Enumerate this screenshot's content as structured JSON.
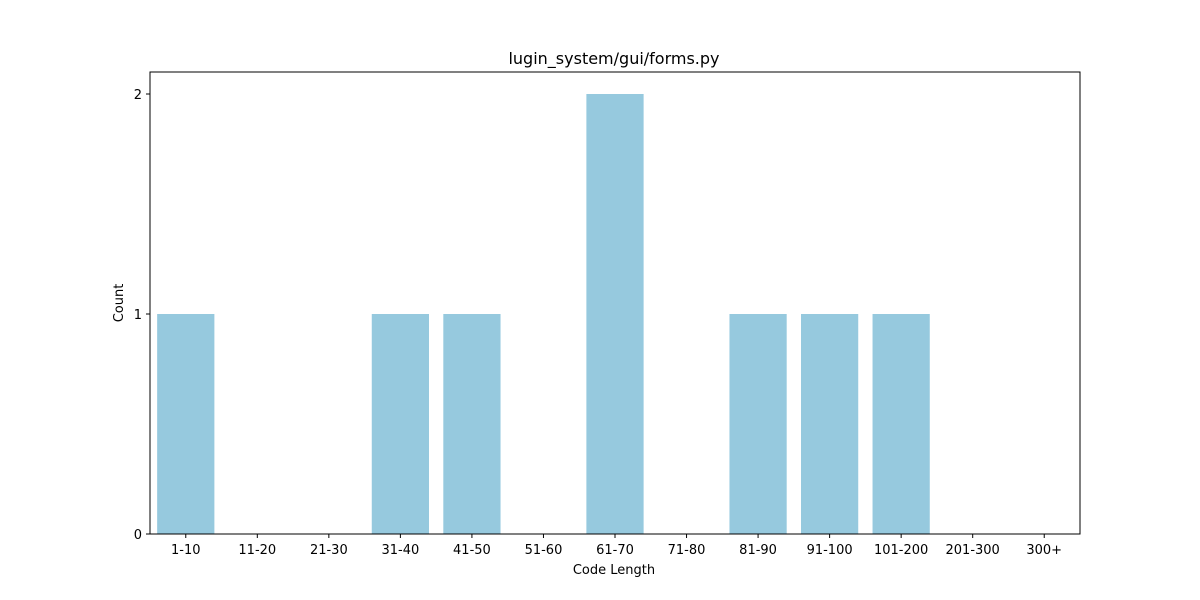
{
  "chart_data": {
    "type": "bar",
    "title": "lugin_system/gui/forms.py",
    "xlabel": "Code Length",
    "ylabel": "Count",
    "categories": [
      "1-10",
      "11-20",
      "21-30",
      "31-40",
      "41-50",
      "51-60",
      "61-70",
      "71-80",
      "81-90",
      "91-100",
      "101-200",
      "201-300",
      "300+"
    ],
    "values": [
      1,
      0,
      0,
      1,
      1,
      0,
      2,
      0,
      1,
      1,
      1,
      0,
      0
    ],
    "ylim": [
      0,
      2.1
    ],
    "yticks": [
      0,
      1,
      2
    ],
    "grid": false,
    "bar_color": "#96c9de"
  }
}
